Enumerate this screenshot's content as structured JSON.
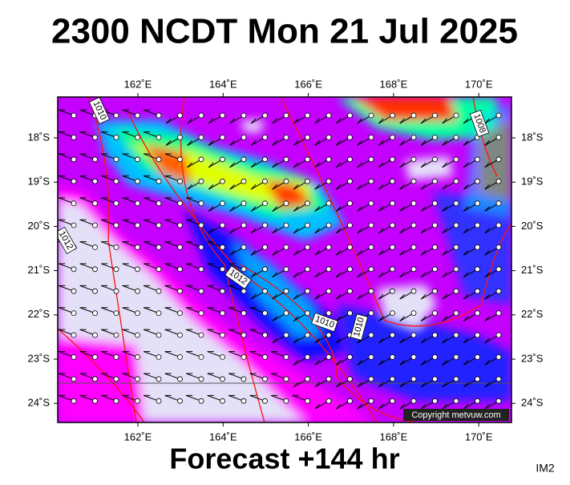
{
  "title": "2300 NCDT Mon 21 Jul 2025",
  "lon_labels": [
    "162˚E",
    "164˚E",
    "166˚E",
    "168˚E",
    "170˚E"
  ],
  "lat_labels": [
    "18˚S",
    "19˚S",
    "20˚S",
    "21˚S",
    "22˚S",
    "23˚S",
    "24˚S"
  ],
  "contour_labels": [
    "1010",
    "1008",
    "1012",
    "1012",
    "1010",
    "1010"
  ],
  "copyright": "Copyright metvuw.com",
  "footer": "Forecast +144 hr",
  "image_id": "IM2"
}
